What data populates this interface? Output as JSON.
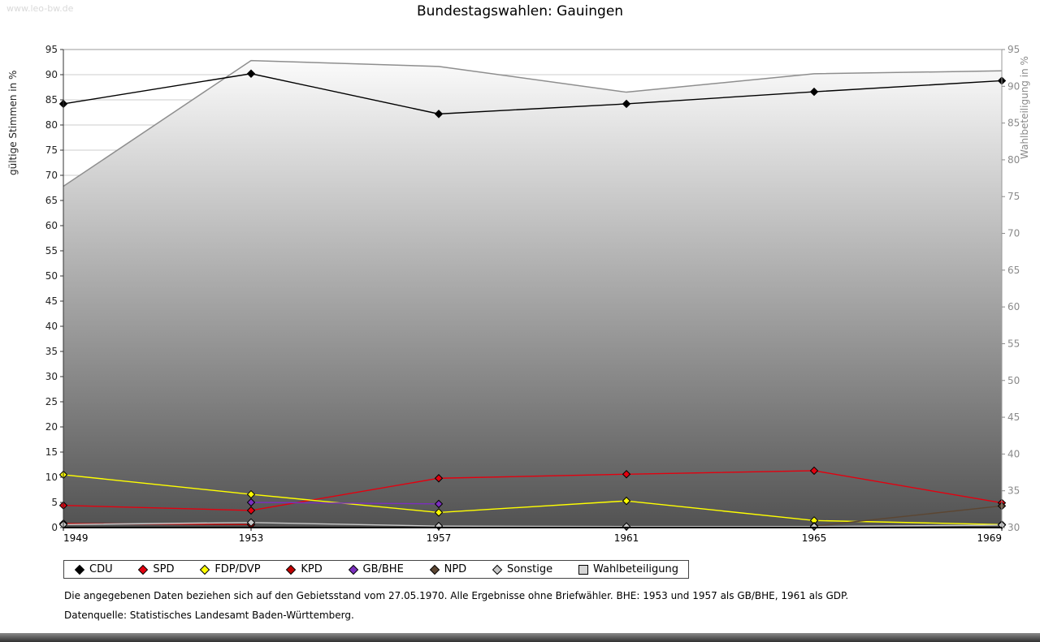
{
  "page": {
    "watermark": "www.leo-bw.de",
    "title": "Bundestagswahlen: Gauingen",
    "footnote1": "Die angegebenen Daten beziehen sich auf den Gebietsstand vom 27.05.1970. Alle Ergebnisse ohne Briefwähler. BHE: 1953 und 1957 als GB/BHE, 1961 als GDP.",
    "footnote2": "Datenquelle: Statistisches Landesamt Baden-Württemberg."
  },
  "chart_data": {
    "type": "line",
    "title": "Bundestagswahlen: Gauingen",
    "x": [
      1949,
      1953,
      1957,
      1961,
      1965,
      1969
    ],
    "left_axis": {
      "label": "gültige Stimmen in %",
      "min": 0,
      "max": 95,
      "tick_step": 5
    },
    "right_axis": {
      "label": "Wahlbeteiligung in %",
      "min": 30,
      "max": 95,
      "tick_step": 5
    },
    "grid": true,
    "legend_position": "bottom",
    "series": [
      {
        "name": "CDU",
        "axis": "left",
        "style": "line",
        "color": "#000000",
        "values": [
          84.2,
          90.2,
          82.2,
          84.2,
          86.6,
          88.8
        ]
      },
      {
        "name": "SPD",
        "axis": "left",
        "style": "line",
        "color": "#e3000f",
        "values": [
          4.4,
          3.4,
          9.8,
          10.6,
          11.3,
          4.9
        ]
      },
      {
        "name": "FDP/DVP",
        "axis": "left",
        "style": "line",
        "color": "#ffff00",
        "values": [
          10.5,
          6.6,
          3.0,
          5.3,
          1.4,
          0.6
        ]
      },
      {
        "name": "KPD",
        "axis": "left",
        "style": "line",
        "color": "#c00000",
        "values": [
          0.8,
          0.6,
          null,
          null,
          null,
          null
        ]
      },
      {
        "name": "GB/BHE",
        "axis": "left",
        "style": "line",
        "color": "#7b2fbe",
        "values": [
          null,
          5.0,
          4.7,
          null,
          null,
          null
        ]
      },
      {
        "name": "NPD",
        "axis": "left",
        "style": "line",
        "color": "#5c4632",
        "values": [
          null,
          null,
          null,
          null,
          0.3,
          4.3
        ]
      },
      {
        "name": "Sonstige",
        "axis": "left",
        "style": "line",
        "color": "#c8c8c8",
        "values": [
          0.6,
          1.0,
          0.3,
          0.2,
          0.2,
          0.5
        ]
      },
      {
        "name": "Wahlbeteiligung",
        "axis": "right",
        "style": "area",
        "color": "#8e8e8e",
        "fill_top": "#ffffff",
        "fill_bottom": "#525252",
        "values": [
          76.4,
          93.5,
          92.7,
          89.2,
          91.7,
          92.1
        ]
      }
    ]
  }
}
